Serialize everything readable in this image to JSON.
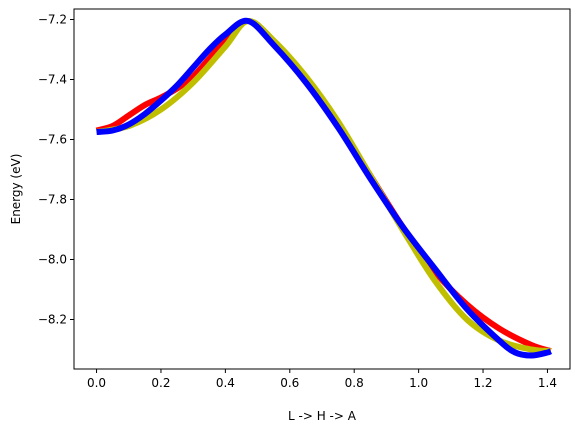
{
  "chart_data": {
    "type": "line",
    "title": "",
    "xlabel": "L -> H -> A",
    "ylabel": "Energy (eV)",
    "xlim": [
      -0.07,
      1.47
    ],
    "ylim": [
      -8.365,
      -7.165
    ],
    "grid": false,
    "legend": "none",
    "x_ticks": [
      0.0,
      0.2,
      0.4,
      0.6,
      0.8,
      1.0,
      1.2,
      1.4
    ],
    "x_tick_labels": [
      "0.0",
      "0.2",
      "0.4",
      "0.6",
      "0.8",
      "1.0",
      "1.2",
      "1.4"
    ],
    "y_ticks": [
      -8.2,
      -8.0,
      -7.8,
      -7.6,
      -7.4,
      -7.2
    ],
    "y_tick_labels": [
      "−8.2",
      "−8.0",
      "−7.8",
      "−7.6",
      "−7.4",
      "−7.2"
    ],
    "series": [
      {
        "color": "#ff0000",
        "width": 6,
        "x": [
          0.0,
          0.05,
          0.1,
          0.15,
          0.2,
          0.25,
          0.3,
          0.35,
          0.4,
          0.47,
          0.55,
          0.65,
          0.75,
          0.85,
          0.95,
          1.05,
          1.15,
          1.25,
          1.35,
          1.41
        ],
        "y": [
          -7.57,
          -7.555,
          -7.52,
          -7.485,
          -7.46,
          -7.43,
          -7.39,
          -7.33,
          -7.27,
          -7.205,
          -7.28,
          -7.4,
          -7.55,
          -7.72,
          -7.89,
          -8.04,
          -8.15,
          -8.23,
          -8.285,
          -8.305
        ]
      },
      {
        "color": "#bfbf00",
        "width": 6,
        "x": [
          0.0,
          0.1,
          0.2,
          0.3,
          0.4,
          0.47,
          0.55,
          0.65,
          0.75,
          0.85,
          0.95,
          1.05,
          1.15,
          1.25,
          1.35,
          1.41
        ],
        "y": [
          -7.575,
          -7.555,
          -7.5,
          -7.41,
          -7.29,
          -7.205,
          -7.27,
          -7.39,
          -7.54,
          -7.72,
          -7.9,
          -8.07,
          -8.2,
          -8.27,
          -8.3,
          -8.305
        ]
      },
      {
        "color": "#0000ff",
        "width": 6,
        "x": [
          0.0,
          0.05,
          0.1,
          0.15,
          0.2,
          0.25,
          0.3,
          0.35,
          0.4,
          0.47,
          0.55,
          0.65,
          0.75,
          0.85,
          0.95,
          1.05,
          1.15,
          1.25,
          1.3,
          1.35,
          1.4,
          1.41
        ],
        "y": [
          -7.575,
          -7.57,
          -7.55,
          -7.515,
          -7.47,
          -7.42,
          -7.36,
          -7.3,
          -7.25,
          -7.205,
          -7.285,
          -7.41,
          -7.56,
          -7.73,
          -7.89,
          -8.03,
          -8.165,
          -8.27,
          -8.31,
          -8.32,
          -8.31,
          -8.305
        ]
      }
    ]
  }
}
